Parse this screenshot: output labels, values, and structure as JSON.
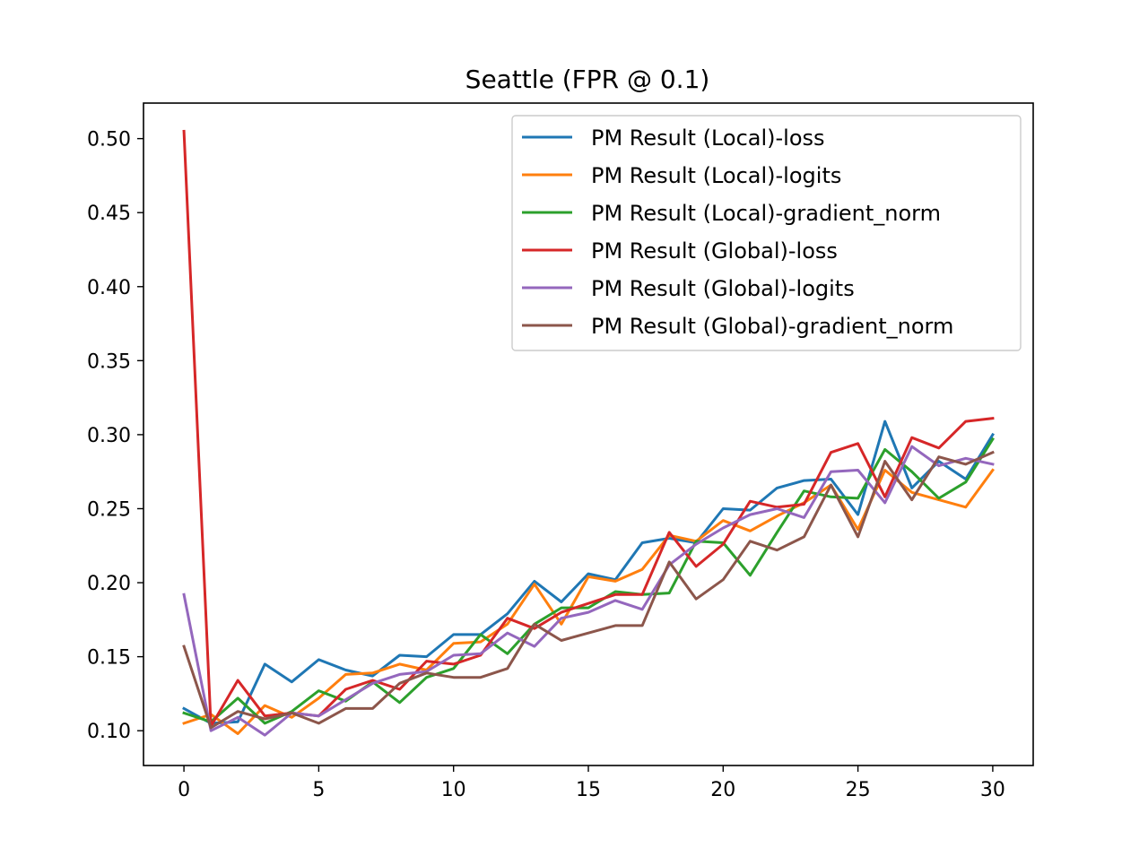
{
  "chart_data": {
    "type": "line",
    "title": "Seattle (FPR @ 0.1)",
    "xlabel": "",
    "ylabel": "",
    "xlim": [
      -1.5,
      31.5
    ],
    "ylim": [
      0.0765,
      0.524
    ],
    "xticks": [
      0,
      5,
      10,
      15,
      20,
      25,
      30
    ],
    "yticks": [
      0.1,
      0.15,
      0.2,
      0.25,
      0.3,
      0.35,
      0.4,
      0.45,
      0.5
    ],
    "grid": false,
    "legend_position": "top-right",
    "x": [
      0,
      1,
      2,
      3,
      4,
      5,
      6,
      7,
      8,
      9,
      10,
      11,
      12,
      13,
      14,
      15,
      16,
      17,
      18,
      19,
      20,
      21,
      22,
      23,
      24,
      25,
      26,
      27,
      28,
      29,
      30
    ],
    "series": [
      {
        "name": "PM Result (Local)-loss",
        "color": "#1f77b4",
        "values": [
          0.115,
          0.105,
          0.106,
          0.145,
          0.133,
          0.148,
          0.141,
          0.137,
          0.151,
          0.15,
          0.165,
          0.165,
          0.179,
          0.201,
          0.187,
          0.206,
          0.202,
          0.227,
          0.23,
          0.227,
          0.25,
          0.249,
          0.264,
          0.269,
          0.27,
          0.246,
          0.309,
          0.264,
          0.282,
          0.27,
          0.3
        ]
      },
      {
        "name": "PM Result (Local)-logits",
        "color": "#ff7f0e",
        "values": [
          0.105,
          0.111,
          0.098,
          0.117,
          0.109,
          0.122,
          0.138,
          0.139,
          0.145,
          0.141,
          0.159,
          0.16,
          0.172,
          0.199,
          0.172,
          0.204,
          0.201,
          0.209,
          0.232,
          0.228,
          0.242,
          0.235,
          0.245,
          0.254,
          0.266,
          0.236,
          0.276,
          0.261,
          0.256,
          0.251,
          0.276
        ]
      },
      {
        "name": "PM Result (Local)-gradient_norm",
        "color": "#2ca02c",
        "values": [
          0.112,
          0.106,
          0.122,
          0.105,
          0.113,
          0.127,
          0.12,
          0.133,
          0.119,
          0.136,
          0.142,
          0.165,
          0.152,
          0.172,
          0.183,
          0.183,
          0.194,
          0.192,
          0.193,
          0.228,
          0.227,
          0.205,
          0.234,
          0.262,
          0.258,
          0.257,
          0.29,
          0.275,
          0.257,
          0.268,
          0.297
        ]
      },
      {
        "name": "PM Result (Global)-loss",
        "color": "#d62728",
        "values": [
          0.505,
          0.103,
          0.134,
          0.11,
          0.112,
          0.11,
          0.128,
          0.134,
          0.128,
          0.147,
          0.145,
          0.151,
          0.176,
          0.169,
          0.18,
          0.186,
          0.192,
          0.192,
          0.234,
          0.211,
          0.226,
          0.255,
          0.251,
          0.253,
          0.288,
          0.294,
          0.258,
          0.298,
          0.291,
          0.309,
          0.311
        ]
      },
      {
        "name": "PM Result (Global)-logits",
        "color": "#9467bd",
        "values": [
          0.192,
          0.1,
          0.109,
          0.097,
          0.112,
          0.11,
          0.121,
          0.132,
          0.138,
          0.14,
          0.151,
          0.152,
          0.166,
          0.157,
          0.176,
          0.18,
          0.188,
          0.182,
          0.212,
          0.226,
          0.237,
          0.246,
          0.25,
          0.244,
          0.275,
          0.276,
          0.254,
          0.292,
          0.279,
          0.284,
          0.28
        ]
      },
      {
        "name": "PM Result (Global)-gradient_norm",
        "color": "#8c564b",
        "values": [
          0.157,
          0.102,
          0.113,
          0.108,
          0.112,
          0.105,
          0.115,
          0.115,
          0.132,
          0.139,
          0.136,
          0.136,
          0.142,
          0.172,
          0.161,
          0.166,
          0.171,
          0.171,
          0.214,
          0.189,
          0.202,
          0.228,
          0.222,
          0.231,
          0.266,
          0.231,
          0.282,
          0.256,
          0.285,
          0.28,
          0.288
        ]
      }
    ]
  }
}
